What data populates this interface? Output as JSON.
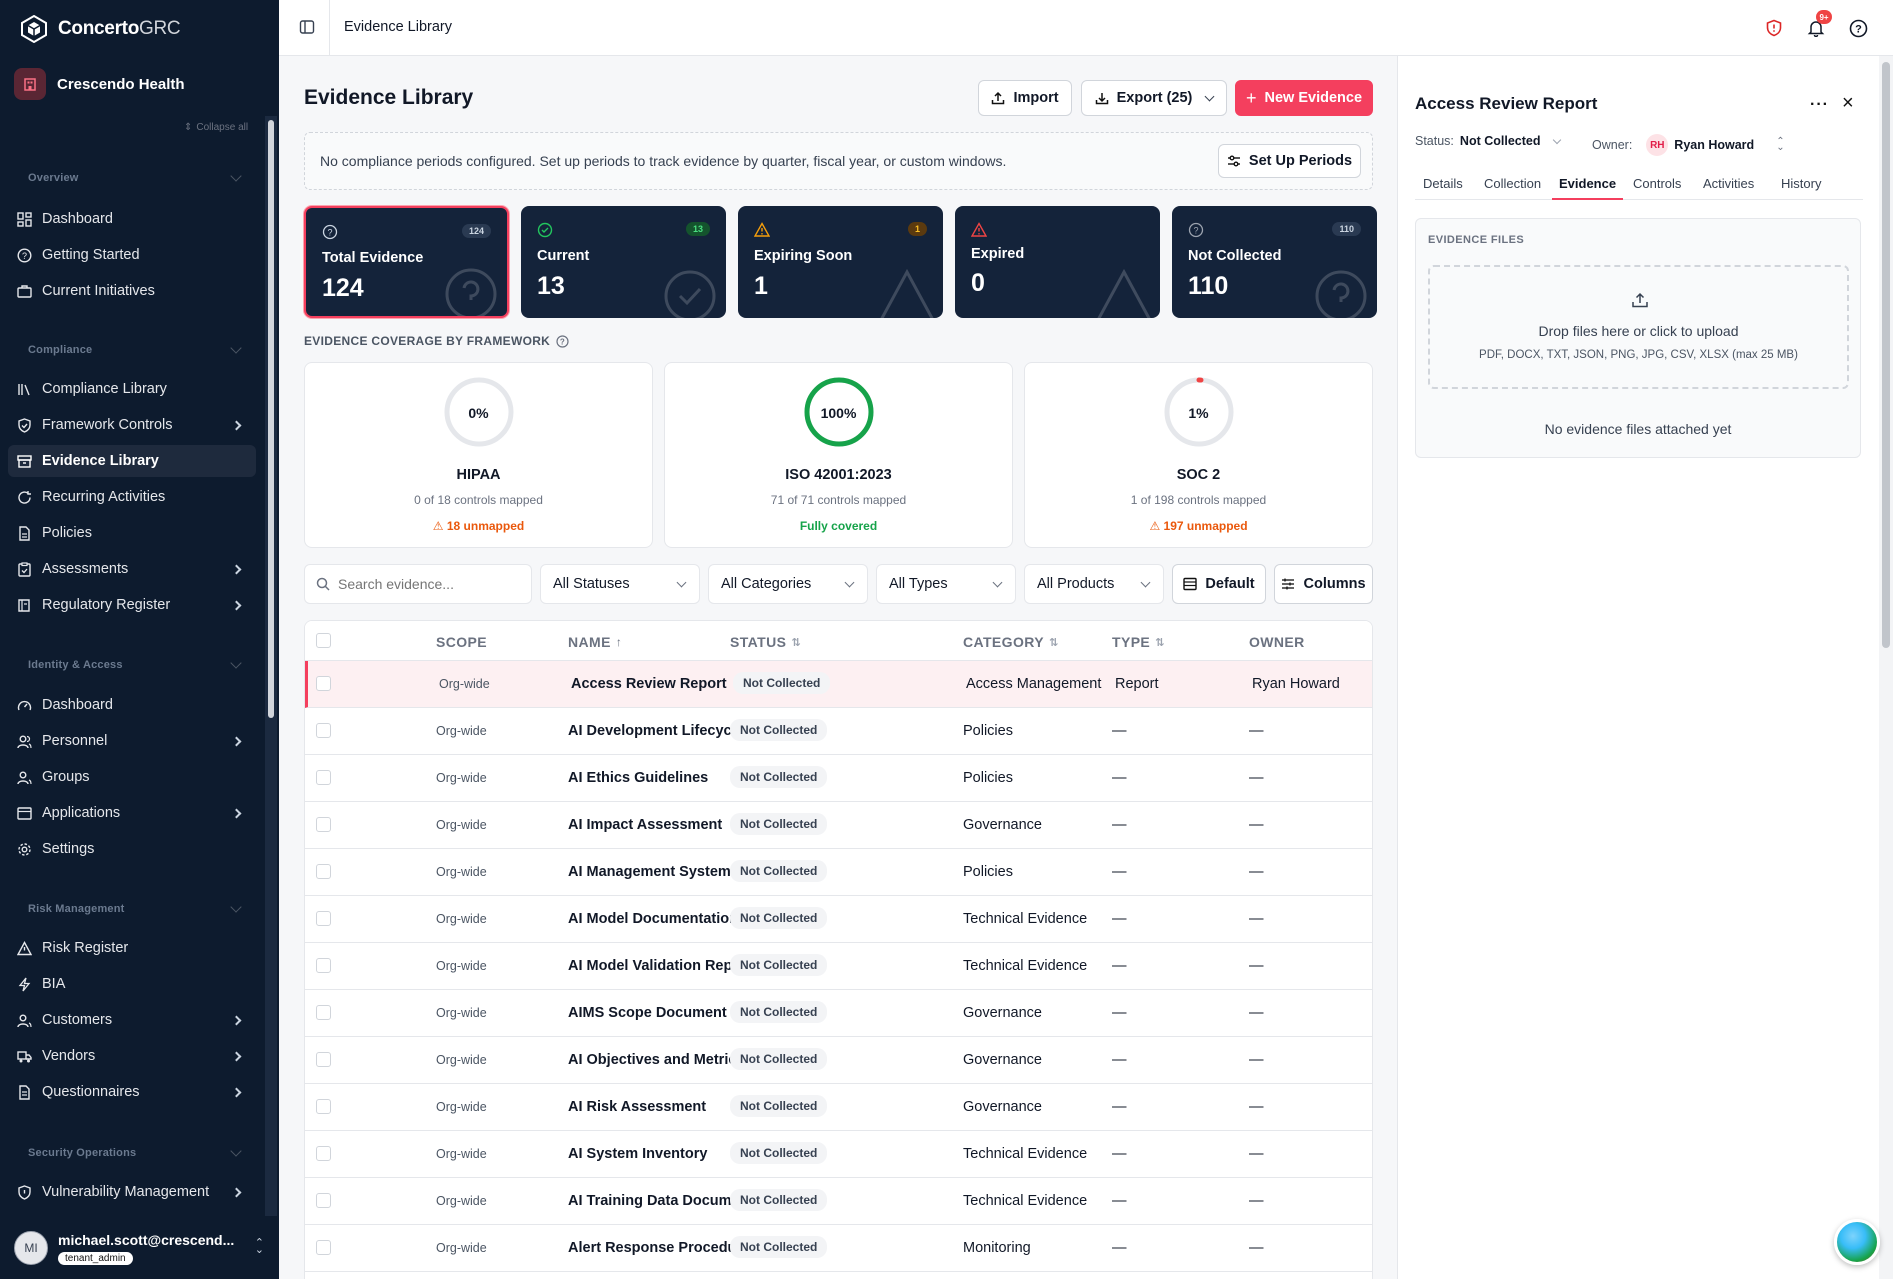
{
  "app": {
    "brand_bold": "Concerto",
    "brand_light": "GRC",
    "org_name": "Crescendo Health",
    "collapse_all": "Collapse all"
  },
  "sidebar": {
    "sections": [
      {
        "title": "Overview",
        "items": [
          {
            "label": "Dashboard"
          },
          {
            "label": "Getting Started"
          },
          {
            "label": "Current Initiatives"
          }
        ]
      },
      {
        "title": "Compliance",
        "items": [
          {
            "label": "Compliance Library"
          },
          {
            "label": "Framework Controls"
          },
          {
            "label": "Evidence Library"
          },
          {
            "label": "Recurring Activities"
          },
          {
            "label": "Policies"
          },
          {
            "label": "Assessments"
          },
          {
            "label": "Regulatory Register"
          }
        ]
      },
      {
        "title": "Identity & Access",
        "items": [
          {
            "label": "Dashboard"
          },
          {
            "label": "Personnel"
          },
          {
            "label": "Groups"
          },
          {
            "label": "Applications"
          },
          {
            "label": "Settings"
          }
        ]
      },
      {
        "title": "Risk Management",
        "items": [
          {
            "label": "Risk Register"
          },
          {
            "label": "BIA"
          },
          {
            "label": "Customers"
          },
          {
            "label": "Vendors"
          },
          {
            "label": "Questionnaires"
          }
        ]
      },
      {
        "title": "Security Operations",
        "items": [
          {
            "label": "Vulnerability Management"
          }
        ]
      }
    ],
    "user": {
      "initials": "MI",
      "email": "michael.scott@crescend...",
      "role": "tenant_admin"
    }
  },
  "topbar": {
    "breadcrumb": "Evidence Library",
    "notif_count": "9+"
  },
  "main": {
    "title": "Evidence Library",
    "import_label": "Import",
    "export_label": "Export (25)",
    "new_label": "New Evidence",
    "banner_text": "No compliance periods configured. Set up periods to track evidence by quarter, fiscal year, or custom windows.",
    "setup_label": "Set Up Periods",
    "stats": [
      {
        "label": "Total Evidence",
        "value": "124",
        "count": "124"
      },
      {
        "label": "Current",
        "value": "13",
        "count": "13"
      },
      {
        "label": "Expiring Soon",
        "value": "1",
        "count": "1"
      },
      {
        "label": "Expired",
        "value": "0",
        "count": ""
      },
      {
        "label": "Not Collected",
        "value": "110",
        "count": "110"
      }
    ],
    "coverage_title": "EVIDENCE COVERAGE BY FRAMEWORK",
    "frameworks": [
      {
        "pct_label": "0%",
        "pct": 0,
        "name": "HIPAA",
        "sub": "0 of 18 controls mapped",
        "note": "18 unmapped"
      },
      {
        "pct_label": "100%",
        "pct": 100,
        "name": "ISO 42001:2023",
        "sub": "71 of 71 controls mapped",
        "note": "Fully covered"
      },
      {
        "pct_label": "1%",
        "pct": 1,
        "name": "SOC 2",
        "sub": "1 of 198 controls mapped",
        "note": "197 unmapped"
      }
    ],
    "filters": {
      "search_placeholder": "Search evidence...",
      "statuses": "All Statuses",
      "categories": "All Categories",
      "types": "All Types",
      "products": "All Products",
      "default_label": "Default",
      "columns_label": "Columns"
    },
    "table": {
      "headers": {
        "scope": "SCOPE",
        "name": "NAME",
        "status": "STATUS",
        "category": "CATEGORY",
        "type": "TYPE",
        "owner": "OWNER"
      },
      "rows": [
        {
          "scope": "Org-wide",
          "name": "Access Review Report",
          "status": "Not Collected",
          "category": "Access Management",
          "type": "Report",
          "owner": "Ryan Howard"
        },
        {
          "scope": "Org-wide",
          "name": "AI Development Lifecycle Policy",
          "status": "Not Collected",
          "category": "Policies",
          "type": "—",
          "owner": "—"
        },
        {
          "scope": "Org-wide",
          "name": "AI Ethics Guidelines",
          "status": "Not Collected",
          "category": "Policies",
          "type": "—",
          "owner": "—"
        },
        {
          "scope": "Org-wide",
          "name": "AI Impact Assessment",
          "status": "Not Collected",
          "category": "Governance",
          "type": "—",
          "owner": "—"
        },
        {
          "scope": "Org-wide",
          "name": "AI Management System Policy",
          "status": "Not Collected",
          "category": "Policies",
          "type": "—",
          "owner": "—"
        },
        {
          "scope": "Org-wide",
          "name": "AI Model Documentation",
          "status": "Not Collected",
          "category": "Technical Evidence",
          "type": "—",
          "owner": "—"
        },
        {
          "scope": "Org-wide",
          "name": "AI Model Validation Report",
          "status": "Not Collected",
          "category": "Technical Evidence",
          "type": "—",
          "owner": "—"
        },
        {
          "scope": "Org-wide",
          "name": "AIMS Scope Document",
          "status": "Not Collected",
          "category": "Governance",
          "type": "—",
          "owner": "—"
        },
        {
          "scope": "Org-wide",
          "name": "AI Objectives and Metrics",
          "status": "Not Collected",
          "category": "Governance",
          "type": "—",
          "owner": "—"
        },
        {
          "scope": "Org-wide",
          "name": "AI Risk Assessment",
          "status": "Not Collected",
          "category": "Governance",
          "type": "—",
          "owner": "—"
        },
        {
          "scope": "Org-wide",
          "name": "AI System Inventory",
          "status": "Not Collected",
          "category": "Technical Evidence",
          "type": "—",
          "owner": "—"
        },
        {
          "scope": "Org-wide",
          "name": "AI Training Data Documentation",
          "status": "Not Collected",
          "category": "Technical Evidence",
          "type": "—",
          "owner": "—"
        },
        {
          "scope": "Org-wide",
          "name": "Alert Response Procedures",
          "status": "Not Collected",
          "category": "Monitoring",
          "type": "—",
          "owner": "—"
        }
      ]
    }
  },
  "panel": {
    "title": "Access Review Report",
    "status_label": "Status:",
    "status_value": "Not Collected",
    "owner_label": "Owner:",
    "owner_initials": "RH",
    "owner_name": "Ryan Howard",
    "tabs": [
      "Details",
      "Collection",
      "Evidence",
      "Controls",
      "Activities",
      "History"
    ],
    "active_tab": "Evidence",
    "files_head": "EVIDENCE FILES",
    "drop_main": "Drop files here or click to upload",
    "drop_sub": "PDF, DOCX, TXT, JSON, PNG, JPG, CSV, XLSX (max 25 MB)",
    "no_files": "No evidence files attached yet"
  },
  "colors": {
    "sidebar_bg": "#0d1b2e",
    "accent": "#f43f5e",
    "success": "#16a34a",
    "warning": "#ea580c",
    "stat_bg": "#14233a"
  }
}
